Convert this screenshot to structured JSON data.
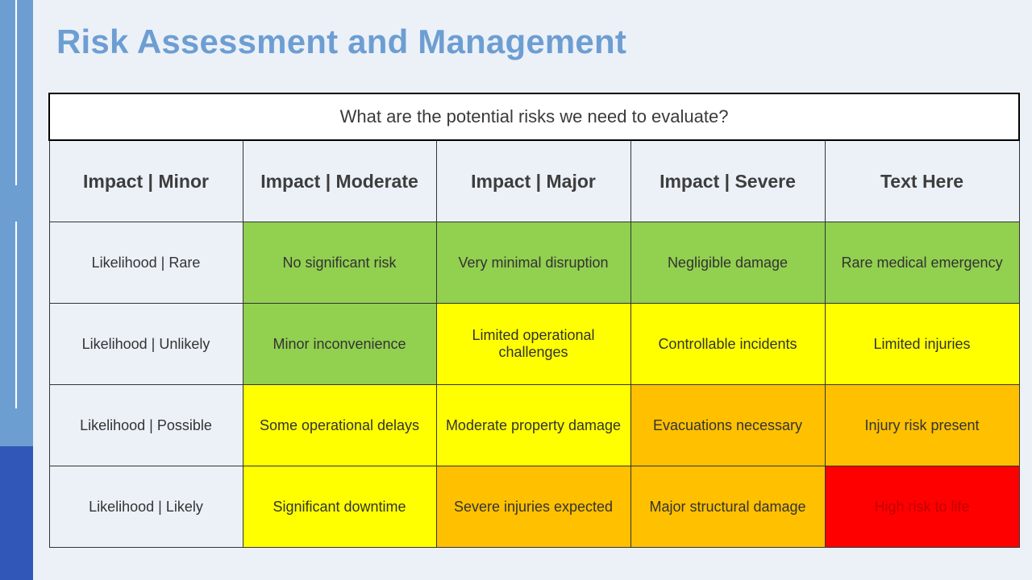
{
  "title": "Risk Assessment and Management",
  "question": "What are the potential risks we need to evaluate?",
  "headers": [
    "Impact | Minor",
    "Impact | Moderate",
    "Impact | Major",
    "Impact | Severe",
    "Text Here"
  ],
  "rows": [
    {
      "label": "Likelihood | Rare",
      "cells": [
        "No significant risk",
        "Very minimal disruption",
        "Negligible damage",
        "Rare medical emergency"
      ]
    },
    {
      "label": "Likelihood | Unlikely",
      "cells": [
        "Minor inconvenience",
        "Limited operational challenges",
        "Controllable incidents",
        "Limited injuries"
      ]
    },
    {
      "label": "Likelihood | Possible",
      "cells": [
        "Some operational delays",
        "Moderate property damage",
        "Evacuations necessary",
        "Injury risk present"
      ]
    },
    {
      "label": "Likelihood | Likely",
      "cells": [
        "Significant downtime",
        "Severe injuries expected",
        "Major structural damage",
        "High risk to life"
      ]
    }
  ],
  "colors": {
    "low": "#92D050",
    "medium": "#FFFF00",
    "high": "#FFC000",
    "extreme": "#FF0000",
    "title": "#6D9ED2",
    "sidebar_light": "#6D9ED2",
    "sidebar_dark": "#3158B8",
    "background": "#ECF1F8"
  }
}
